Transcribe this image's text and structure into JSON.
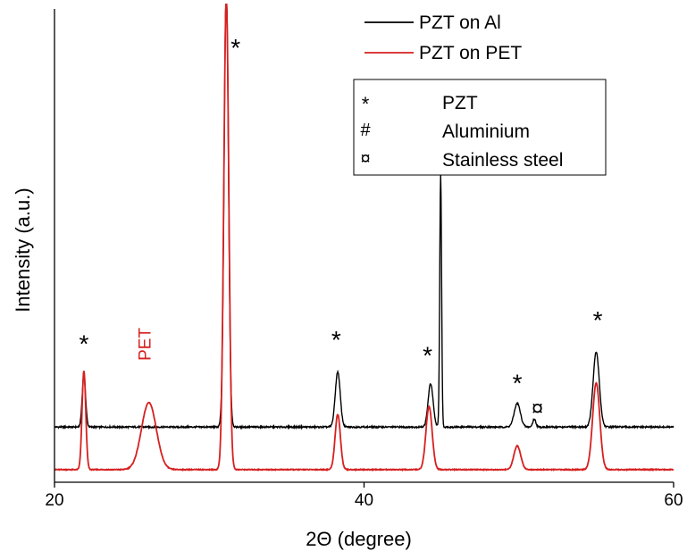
{
  "chart_data": {
    "type": "line",
    "title": "",
    "xlabel": "2Θ (degree)",
    "ylabel": "Intensity (a.u.)",
    "xlim": [
      20,
      60
    ],
    "x_ticks": [
      20,
      40,
      60
    ],
    "y_ticks": [],
    "grid": false,
    "legend_position": "top-right",
    "series": [
      {
        "name": "PZT on Al",
        "color": "#000000",
        "baseline": 0.14,
        "noise": 0.004,
        "peaks": [
          {
            "x": 21.9,
            "height": 0.13,
            "width": 0.11
          },
          {
            "x": 31.1,
            "height": 1.12,
            "width": 0.14
          },
          {
            "x": 38.3,
            "height": 0.14,
            "width": 0.16
          },
          {
            "x": 44.3,
            "height": 0.11,
            "width": 0.16
          },
          {
            "x": 44.95,
            "height": 0.64,
            "width": 0.06
          },
          {
            "x": 49.9,
            "height": 0.06,
            "width": 0.2
          },
          {
            "x": 51.0,
            "height": 0.02,
            "width": 0.1
          },
          {
            "x": 55.0,
            "height": 0.19,
            "width": 0.2
          }
        ]
      },
      {
        "name": "PZT on PET",
        "color": "#d62020",
        "baseline": 0.032,
        "noise": 0.002,
        "peaks": [
          {
            "x": 21.9,
            "height": 0.25,
            "width": 0.12
          },
          {
            "x": 26.1,
            "height": 0.17,
            "width": 0.48
          },
          {
            "x": 31.1,
            "height": 1.2,
            "width": 0.16
          },
          {
            "x": 38.3,
            "height": 0.14,
            "width": 0.17
          },
          {
            "x": 44.2,
            "height": 0.16,
            "width": 0.2
          },
          {
            "x": 49.9,
            "height": 0.06,
            "width": 0.22
          },
          {
            "x": 55.0,
            "height": 0.22,
            "width": 0.23
          }
        ]
      }
    ],
    "legend_markers": {
      "items": [
        {
          "symbol": "*",
          "label": "PZT"
        },
        {
          "symbol": "#",
          "label": "Aluminium"
        },
        {
          "symbol": "¤",
          "label": "Stainless steel"
        }
      ]
    },
    "annotations": [
      {
        "text": "*",
        "x": 31.7,
        "y": 1.08,
        "color": "#000000",
        "rotate": false
      },
      {
        "text": "*",
        "x": 21.9,
        "y": 0.33,
        "color": "#000000",
        "rotate": false
      },
      {
        "text": "PET",
        "x": 26.2,
        "y": 0.35,
        "color": "#d62020",
        "rotate": true
      },
      {
        "text": "*",
        "x": 38.2,
        "y": 0.34,
        "color": "#000000",
        "rotate": false
      },
      {
        "text": "#",
        "x": 44.95,
        "y": 0.86,
        "color": "#000000",
        "rotate": false
      },
      {
        "text": "*",
        "x": 44.1,
        "y": 0.3,
        "color": "#000000",
        "rotate": false
      },
      {
        "text": "*",
        "x": 49.9,
        "y": 0.23,
        "color": "#000000",
        "rotate": false
      },
      {
        "text": "¤",
        "x": 51.2,
        "y": 0.17,
        "color": "#000000",
        "rotate": false
      },
      {
        "text": "*",
        "x": 55.1,
        "y": 0.39,
        "color": "#000000",
        "rotate": false
      }
    ]
  }
}
